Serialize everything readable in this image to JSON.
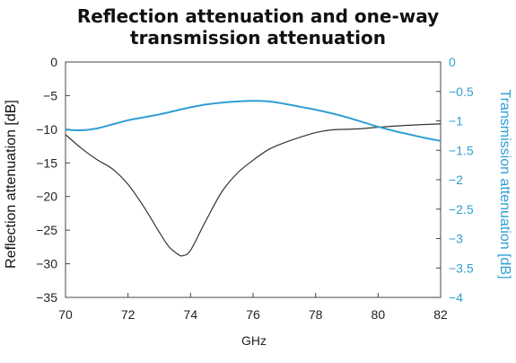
{
  "chart_data": {
    "type": "line",
    "title_lines": [
      "Reflection attenuation and one-way",
      "transmission attenuation"
    ],
    "xlabel": "GHz",
    "ylabel_left": "Reflection attenuation [dB]",
    "ylabel_right": "Transmission attenuation [dB]",
    "xlim": [
      70,
      82
    ],
    "ylim_left": [
      -35,
      0
    ],
    "ylim_right": [
      -4,
      0
    ],
    "xticks": [
      "70",
      "72",
      "74",
      "76",
      "78",
      "80",
      "82"
    ],
    "yticks_left": [
      "0",
      "−5",
      "−10",
      "−15",
      "−20",
      "−25",
      "−30",
      "−35"
    ],
    "yticks_right": [
      "0",
      "−0.5",
      "−1",
      "−1.5",
      "−2",
      "−2.5",
      "−3",
      "−3.5",
      "−4"
    ],
    "grid": false,
    "colors": {
      "reflection": "#333333",
      "transmission": "#2f9fd3"
    },
    "series": [
      {
        "axis": "left",
        "x": [
          70,
          70.5,
          71,
          71.5,
          72,
          72.5,
          73,
          73.3,
          73.6,
          73.75,
          74,
          74.5,
          75,
          75.5,
          76,
          76.5,
          77,
          77.5,
          78,
          78.5,
          79,
          79.5,
          80,
          81,
          82
        ],
        "y": [
          -10.8,
          -12.8,
          -14.5,
          -15.9,
          -18.2,
          -21.5,
          -25.3,
          -27.4,
          -28.6,
          -28.8,
          -28.0,
          -23.5,
          -19.3,
          -16.5,
          -14.6,
          -13.0,
          -12.0,
          -11.2,
          -10.5,
          -10.1,
          -10.0,
          -9.9,
          -9.7,
          -9.4,
          -9.2
        ]
      },
      {
        "axis": "right",
        "x": [
          70,
          70.5,
          71,
          71.5,
          72,
          72.5,
          73,
          73.5,
          74,
          74.5,
          75,
          75.5,
          76,
          76.5,
          77,
          77.5,
          78,
          78.5,
          79,
          79.5,
          80,
          80.5,
          81,
          81.5,
          82
        ],
        "y": [
          -1.15,
          -1.16,
          -1.13,
          -1.06,
          -0.99,
          -0.94,
          -0.89,
          -0.83,
          -0.77,
          -0.72,
          -0.69,
          -0.67,
          -0.66,
          -0.67,
          -0.71,
          -0.76,
          -0.81,
          -0.87,
          -0.94,
          -1.02,
          -1.1,
          -1.17,
          -1.23,
          -1.29,
          -1.34
        ]
      }
    ]
  }
}
